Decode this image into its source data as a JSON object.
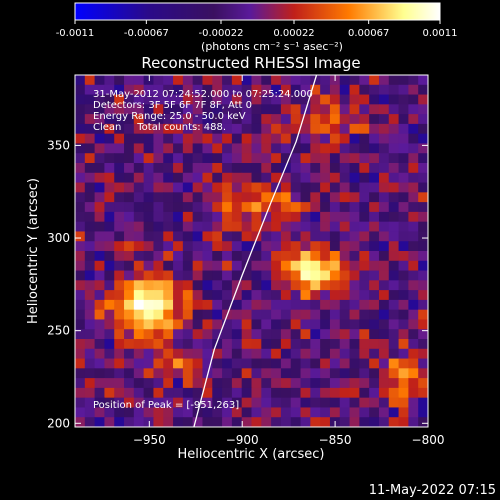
{
  "chart_data": {
    "type": "heatmap",
    "title": "Reconstructed RHESSI Image",
    "colorbar": {
      "ticks": [
        "-0.0011",
        "-0.00067",
        "-0.00022",
        "0.00022",
        "0.00067",
        "0.0011"
      ],
      "range": [
        -0.0011,
        0.0011
      ],
      "unit_label": "(photons cm⁻² s⁻¹ asec⁻²)",
      "colors": [
        "#0000ff",
        "#2a0a8a",
        "#3a1060",
        "#5a1a9a",
        "#c0201a",
        "#ff7a00",
        "#ffff90",
        "#ffffff"
      ]
    },
    "xlabel": "Heliocentric X (arcsec)",
    "ylabel": "Heliocentric Y (arcsec)",
    "xlim": [
      -990,
      -800
    ],
    "ylim": [
      198,
      388
    ],
    "xticks": [
      -950,
      -900,
      -850,
      -800
    ],
    "yticks": [
      200,
      250,
      300,
      350
    ],
    "annotations": [
      "31-May-2012 07:24:52.000 to 07:25:24.000",
      "Detectors: 3F 5F 6F 7F 8F, Att 0",
      "Energy Range: 25.0 - 50.0 keV",
      "Clean     Total counts: 488.",
      "Position of Peak = [-951,263]"
    ],
    "peak": {
      "x": -951,
      "y": 263
    },
    "sources": [
      {
        "x": -951,
        "y": 263,
        "sx": 14,
        "sy": 12,
        "amp": 1.0
      },
      {
        "x": -862,
        "y": 282,
        "sx": 12,
        "sy": 9,
        "amp": 0.82
      },
      {
        "x": -893,
        "y": 318,
        "sx": 20,
        "sy": 7,
        "amp": 0.55
      },
      {
        "x": -812,
        "y": 222,
        "sx": 8,
        "sy": 12,
        "amp": 0.55
      },
      {
        "x": -855,
        "y": 365,
        "sx": 14,
        "sy": 10,
        "amp": 0.35
      },
      {
        "x": -938,
        "y": 232,
        "sx": 10,
        "sy": 7,
        "amp": 0.35
      }
    ],
    "limb_curve": [
      [
        -926,
        198
      ],
      [
        -915,
        240
      ],
      [
        -900,
        280
      ],
      [
        -885,
        318
      ],
      [
        -871,
        352
      ],
      [
        -860,
        388
      ]
    ]
  },
  "footer": {
    "timestamp": "11-May-2022 07:15"
  }
}
